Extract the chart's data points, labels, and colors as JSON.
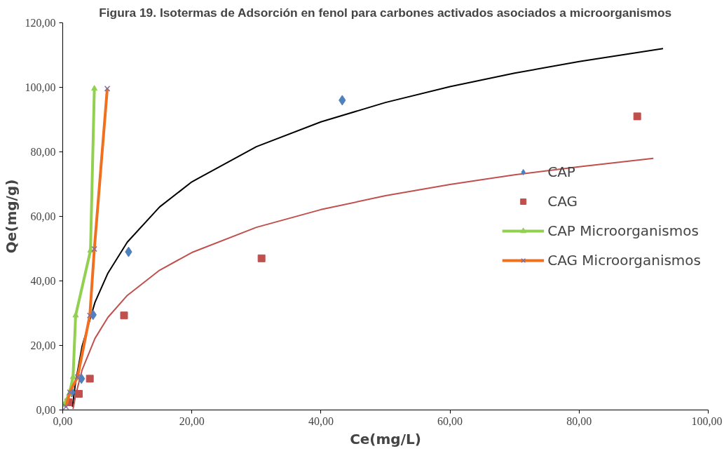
{
  "chart_data": {
    "type": "scatter",
    "title": "Figura 19. Isotermas de Adsorción en fenol para carbones activados asociados a microorganismos",
    "xlabel": "Ce(mg/L)",
    "ylabel": "Qe(mg/g)",
    "xlim": [
      0,
      100
    ],
    "ylim": [
      0,
      120
    ],
    "xticks": [
      {
        "value": 0,
        "label": "0,00"
      },
      {
        "value": 20,
        "label": "20,00"
      },
      {
        "value": 40,
        "label": "40,00"
      },
      {
        "value": 60,
        "label": "60,00"
      },
      {
        "value": 80,
        "label": "80,00"
      },
      {
        "value": 100,
        "label": "100,00"
      }
    ],
    "yticks": [
      {
        "value": 0,
        "label": "0,00"
      },
      {
        "value": 20,
        "label": "20,00"
      },
      {
        "value": 40,
        "label": "40,00"
      },
      {
        "value": 60,
        "label": "60,00"
      },
      {
        "value": 80,
        "label": "80,00"
      },
      {
        "value": 100,
        "label": "100,00"
      },
      {
        "value": 120,
        "label": "120,00"
      }
    ],
    "grid": false,
    "legend": "right",
    "series": [
      {
        "type": "line",
        "color": "#000000",
        "marker": "none",
        "x": [
          1.5,
          2,
          3,
          5,
          7,
          10,
          15,
          20,
          30,
          40,
          50,
          60,
          70,
          80,
          93
        ],
        "values": [
          1,
          8.7,
          19.7,
          33.4,
          42.4,
          52,
          62.9,
          70.7,
          81.6,
          89.3,
          95.3,
          100.2,
          104.4,
          108,
          112
        ]
      },
      {
        "type": "line",
        "color": "#c0504d",
        "marker": "none",
        "x": [
          1.6,
          2,
          3,
          5,
          7,
          10,
          15,
          20,
          30,
          40,
          50,
          60,
          70,
          80,
          91.5
        ],
        "values": [
          0.3,
          4.6,
          12.4,
          22.2,
          28.7,
          35.5,
          43.3,
          48.8,
          56.6,
          62.1,
          66.4,
          69.9,
          72.9,
          75.4,
          78
        ]
      },
      {
        "name": "CAP",
        "color": "#4f81bd",
        "marker": "diamond",
        "x": [
          1.4,
          2.9,
          4.7,
          10.2,
          43.3
        ],
        "values": [
          5.5,
          9.7,
          29.5,
          49,
          96
        ]
      },
      {
        "name": "CAG",
        "color": "#c0504d",
        "marker": "square",
        "x": [
          0.9,
          2.5,
          4.2,
          9.5,
          30.8,
          89
        ],
        "values": [
          2.4,
          5,
          9.7,
          29.3,
          47,
          91
        ]
      },
      {
        "name": "CAP Microorganismos",
        "type": "line",
        "color": "#92d050",
        "marker": "triangle",
        "x": [
          0.2,
          1,
          1.6,
          2,
          4.3,
          4.9
        ],
        "values": [
          1.6,
          5,
          10.2,
          29.3,
          49.4,
          99.6
        ]
      },
      {
        "name": "CAG Microorganismos",
        "type": "line",
        "color": "#f07020",
        "marker": "cross",
        "x": [
          0.5,
          1.1,
          2.3,
          4.2,
          4.9,
          6.9
        ],
        "values": [
          1,
          5.5,
          10.2,
          29.3,
          49.9,
          99.6
        ]
      }
    ]
  }
}
